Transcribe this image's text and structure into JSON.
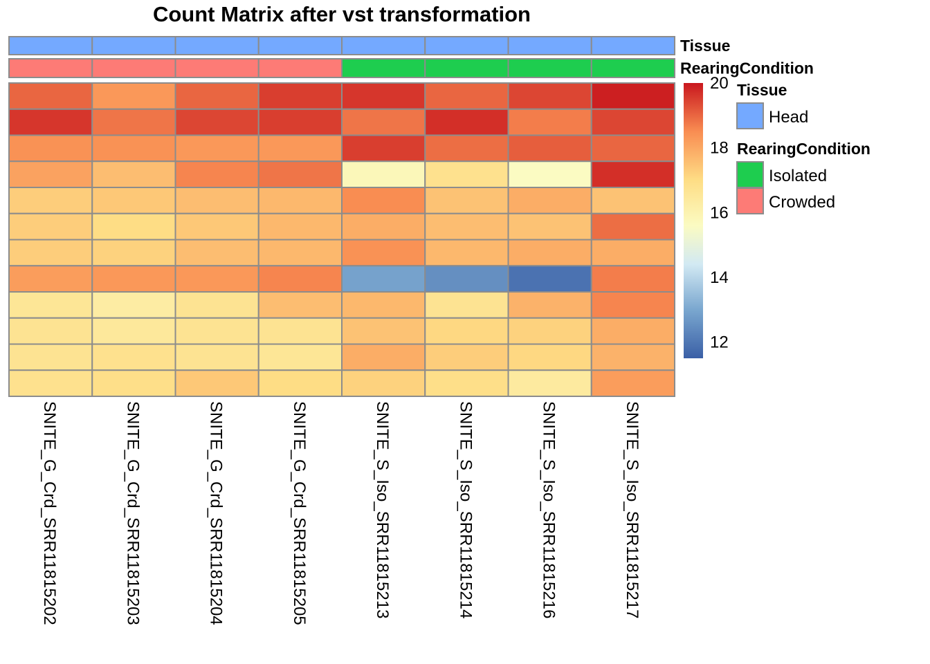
{
  "chart_data": {
    "type": "heatmap",
    "title": "Count Matrix after vst transformation",
    "columns": [
      "SNITE_G_Crd_SRR11815202",
      "SNITE_G_Crd_SRR11815203",
      "SNITE_G_Crd_SRR11815204",
      "SNITE_G_Crd_SRR11815205",
      "SNITE_S_Iso_SRR11815213",
      "SNITE_S_Iso_SRR11815214",
      "SNITE_S_Iso_SRR11815216",
      "SNITE_S_Iso_SRR11815217"
    ],
    "values": [
      [
        19.0,
        18.3,
        19.0,
        19.5,
        19.6,
        19.0,
        19.4,
        19.9
      ],
      [
        19.6,
        18.8,
        19.4,
        19.5,
        18.8,
        19.7,
        18.7,
        19.4
      ],
      [
        18.4,
        18.4,
        18.3,
        18.3,
        19.5,
        18.9,
        19.1,
        19.0
      ],
      [
        18.1,
        17.6,
        18.6,
        18.8,
        15.8,
        16.8,
        15.6,
        19.7
      ],
      [
        17.3,
        17.4,
        17.6,
        17.7,
        18.5,
        17.5,
        17.9,
        17.5
      ],
      [
        17.3,
        17.0,
        17.4,
        17.7,
        17.9,
        17.6,
        17.5,
        18.9
      ],
      [
        17.3,
        17.2,
        17.6,
        17.7,
        18.4,
        17.7,
        17.9,
        17.9
      ],
      [
        18.2,
        18.3,
        18.3,
        18.6,
        12.9,
        12.5,
        11.9,
        18.7
      ],
      [
        16.6,
        16.3,
        16.7,
        17.6,
        17.7,
        16.7,
        17.8,
        18.6
      ],
      [
        16.7,
        16.5,
        16.7,
        16.7,
        17.5,
        17.1,
        17.2,
        17.9
      ],
      [
        16.7,
        16.8,
        16.7,
        16.6,
        17.9,
        17.3,
        17.1,
        17.8
      ],
      [
        16.8,
        16.9,
        17.4,
        17.0,
        17.2,
        16.9,
        16.4,
        18.2
      ]
    ],
    "color_scale": {
      "min": 11.5,
      "max": 20,
      "ticks": [
        12,
        14,
        16,
        18,
        20
      ],
      "stops": [
        {
          "v": 11.5,
          "color": "#3a5fa6"
        },
        {
          "v": 13.0,
          "color": "#7aa7cf"
        },
        {
          "v": 14.4,
          "color": "#d2e9f3"
        },
        {
          "v": 15.6,
          "color": "#fbfbc2"
        },
        {
          "v": 17.0,
          "color": "#fedd85"
        },
        {
          "v": 18.5,
          "color": "#f98d52"
        },
        {
          "v": 20.0,
          "color": "#c9171e"
        }
      ]
    },
    "annotations": [
      {
        "name": "Tissue",
        "values": [
          "Head",
          "Head",
          "Head",
          "Head",
          "Head",
          "Head",
          "Head",
          "Head"
        ]
      },
      {
        "name": "RearingCondition",
        "values": [
          "Crowded",
          "Crowded",
          "Crowded",
          "Crowded",
          "Isolated",
          "Isolated",
          "Isolated",
          "Isolated"
        ]
      }
    ],
    "legend": {
      "placement": "right",
      "groups": [
        {
          "title": "Tissue",
          "items": [
            {
              "label": "Head",
              "color": "#74a9ff"
            }
          ]
        },
        {
          "title": "RearingCondition",
          "items": [
            {
              "label": "Isolated",
              "color": "#1ecd4f"
            },
            {
              "label": "Crowded",
              "color": "#fd7b76"
            }
          ]
        }
      ]
    },
    "annotation_colors": {
      "Head": "#74a9ff",
      "Isolated": "#1ecd4f",
      "Crowded": "#fd7b76"
    },
    "grid_color": "#8c8c8c"
  }
}
